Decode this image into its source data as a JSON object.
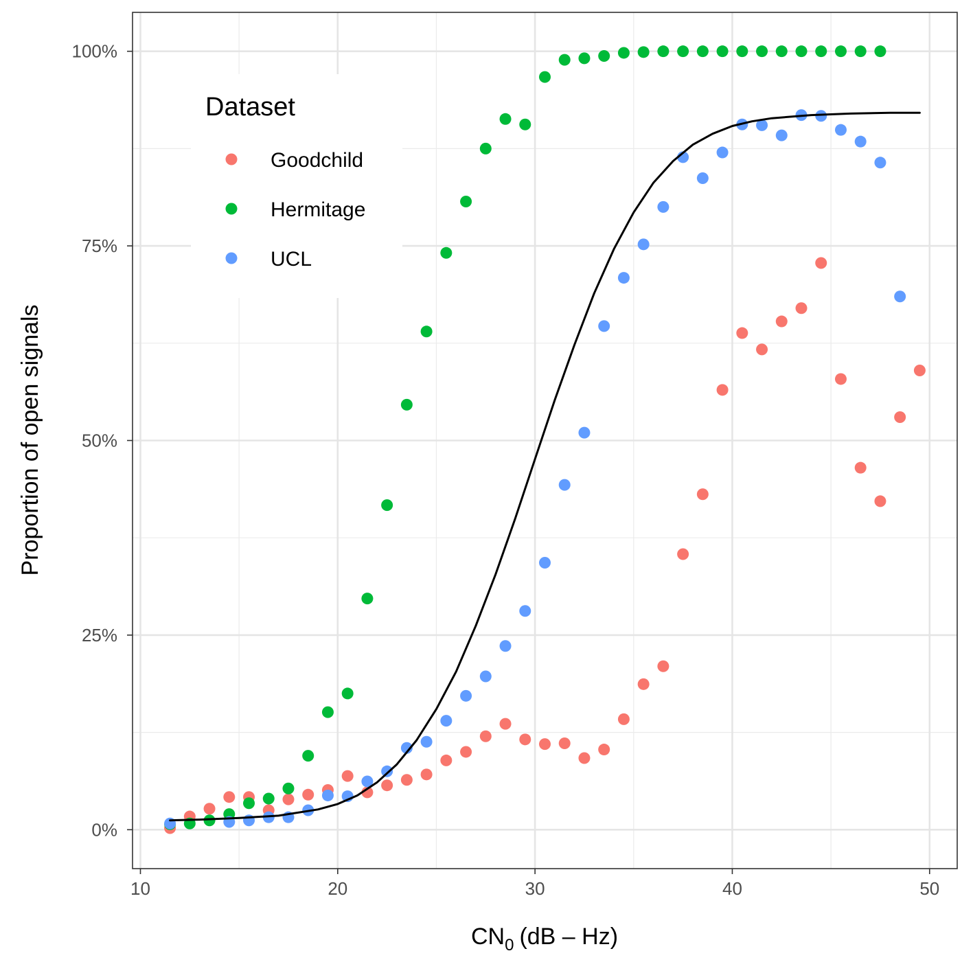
{
  "chart_data": {
    "type": "scatter",
    "xlabel_main": "CN",
    "xlabel_sub": "0",
    "xlabel_unit": "(dB – Hz)",
    "ylabel": "Proportion of open signals",
    "xlim": [
      9.6,
      51.4
    ],
    "ylim": [
      -5,
      105
    ],
    "x_ticks": [
      10,
      20,
      30,
      40,
      50
    ],
    "x_tick_labels": [
      "10",
      "20",
      "30",
      "40",
      "50"
    ],
    "y_ticks": [
      0,
      25,
      50,
      75,
      100
    ],
    "y_tick_labels": [
      "0%",
      "25%",
      "50%",
      "75%",
      "100%"
    ],
    "grid": true,
    "legend": {
      "title": "Dataset",
      "position": "top-left-inside",
      "entries": [
        "Goodchild",
        "Hermitage",
        "UCL"
      ]
    },
    "series": [
      {
        "name": "Goodchild",
        "color": "#F8766D",
        "x": [
          11.5,
          12.5,
          13.5,
          14.5,
          15.5,
          16.5,
          17.5,
          18.5,
          19.5,
          20.5,
          21.5,
          22.5,
          23.5,
          24.5,
          25.5,
          26.5,
          27.5,
          28.5,
          29.5,
          30.5,
          31.5,
          32.5,
          33.5,
          34.5,
          35.5,
          36.5,
          37.5,
          38.5,
          39.5,
          40.5,
          41.5,
          42.5,
          43.5,
          44.5,
          45.5,
          46.5,
          47.5,
          48.5,
          49.5
        ],
        "y": [
          0.2,
          1.7,
          2.7,
          4.2,
          4.2,
          2.5,
          3.9,
          4.5,
          5.1,
          6.9,
          4.8,
          5.7,
          6.4,
          7.1,
          8.9,
          10.0,
          12.0,
          13.6,
          11.6,
          11.0,
          11.1,
          9.2,
          10.3,
          14.2,
          18.7,
          21.0,
          35.4,
          43.1,
          56.5,
          63.8,
          61.7,
          65.3,
          67.0,
          72.8,
          57.9,
          46.5,
          42.2,
          53.0,
          59.0
        ]
      },
      {
        "name": "Hermitage",
        "color": "#00BA38",
        "x": [
          11.5,
          12.5,
          13.5,
          14.5,
          15.5,
          16.5,
          17.5,
          18.5,
          19.5,
          20.5,
          21.5,
          22.5,
          23.5,
          24.5,
          25.5,
          26.5,
          27.5,
          28.5,
          29.5,
          30.5,
          31.5,
          32.5,
          33.5,
          34.5,
          35.5,
          36.5,
          37.5,
          38.5,
          39.5,
          40.5,
          41.5,
          42.5,
          43.5,
          44.5,
          45.5,
          46.5,
          47.5
        ],
        "y": [
          0.7,
          0.8,
          1.2,
          2.0,
          3.4,
          4.0,
          5.3,
          9.5,
          15.1,
          17.5,
          29.7,
          41.7,
          54.6,
          64.0,
          74.1,
          80.7,
          87.5,
          91.3,
          90.6,
          96.7,
          98.9,
          99.1,
          99.4,
          99.8,
          99.9,
          100,
          100,
          100,
          100,
          100,
          100,
          100,
          100,
          100,
          100,
          100,
          100
        ]
      },
      {
        "name": "UCL",
        "color": "#619CFF",
        "x": [
          11.5,
          14.5,
          15.5,
          16.5,
          17.5,
          18.5,
          19.5,
          20.5,
          21.5,
          22.5,
          23.5,
          24.5,
          25.5,
          26.5,
          27.5,
          28.5,
          29.5,
          30.5,
          31.5,
          32.5,
          33.5,
          34.5,
          35.5,
          36.5,
          37.5,
          38.5,
          39.5,
          40.5,
          41.5,
          42.5,
          43.5,
          44.5,
          45.5,
          46.5,
          47.5,
          48.5
        ],
        "y": [
          0.8,
          1.0,
          1.2,
          1.6,
          1.6,
          2.5,
          4.4,
          4.3,
          6.2,
          7.5,
          10.5,
          11.3,
          14.0,
          17.2,
          19.7,
          23.6,
          28.1,
          34.3,
          44.3,
          51.0,
          64.7,
          70.9,
          75.2,
          80.0,
          86.4,
          83.7,
          87.0,
          90.6,
          90.5,
          89.2,
          91.8,
          91.7,
          89.9,
          88.4,
          85.7,
          68.5
        ]
      },
      {
        "name": "fit",
        "type": "line",
        "color": "#000000",
        "x": [
          11.5,
          13,
          15,
          17,
          19,
          20,
          21,
          22,
          23,
          24,
          25,
          26,
          27,
          28,
          29,
          30,
          31,
          32,
          33,
          34,
          35,
          36,
          37,
          38,
          39,
          40,
          41,
          42,
          44,
          46,
          48,
          49.5
        ],
        "y": [
          1.2,
          1.3,
          1.5,
          1.8,
          2.6,
          3.3,
          4.4,
          6.1,
          8.4,
          11.5,
          15.5,
          20.3,
          26.2,
          32.8,
          40.0,
          47.6,
          55.2,
          62.3,
          68.9,
          74.6,
          79.3,
          83.1,
          85.9,
          88.0,
          89.4,
          90.4,
          91.0,
          91.4,
          91.8,
          92.0,
          92.1,
          92.1
        ]
      }
    ]
  }
}
